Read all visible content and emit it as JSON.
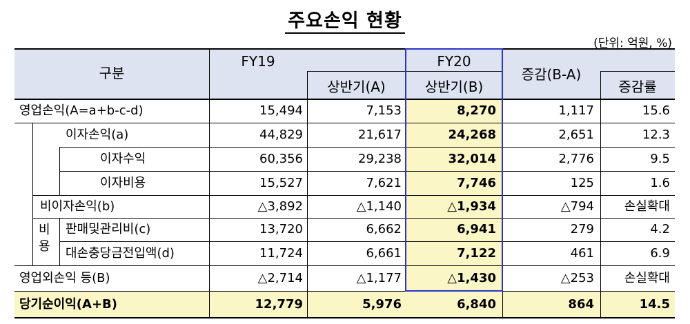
{
  "title": "주요손익 현황",
  "unit": "(단위: 억원, %)",
  "header": {
    "category": "구분",
    "fy19": "FY19",
    "fy19_h1": "상반기(A)",
    "fy20": "FY20",
    "fy20_h1": "상반기(B)",
    "change": "증감(B-A)",
    "rate": "증감률"
  },
  "side_label": "비\n용",
  "rows": [
    {
      "label": "영업손익(A=a+b-c-d)",
      "fy19": "15,494",
      "h1a": "7,153",
      "h1b": "8,270",
      "change": "1,117",
      "rate": "15.6"
    },
    {
      "label": "이자손익(a)",
      "fy19": "44,829",
      "h1a": "21,617",
      "h1b": "24,268",
      "change": "2,651",
      "rate": "12.3"
    },
    {
      "label": "이자수익",
      "fy19": "60,356",
      "h1a": "29,238",
      "h1b": "32,014",
      "change": "2,776",
      "rate": "9.5"
    },
    {
      "label": "이자비용",
      "fy19": "15,527",
      "h1a": "7,621",
      "h1b": "7,746",
      "change": "125",
      "rate": "1.6"
    },
    {
      "label": "비이자손익(b)",
      "fy19": "△3,892",
      "h1a": "△1,140",
      "h1b": "△1,934",
      "change": "△794",
      "rate": "손실확대"
    },
    {
      "label": "판매및관리비(c)",
      "fy19": "13,720",
      "h1a": "6,662",
      "h1b": "6,941",
      "change": "279",
      "rate": "4.2"
    },
    {
      "label": "대손충당금전입액(d)",
      "fy19": "11,724",
      "h1a": "6,661",
      "h1b": "7,122",
      "change": "461",
      "rate": "6.9"
    },
    {
      "label": "영업외손익 등(B)",
      "fy19": "△2,714",
      "h1a": "△1,177",
      "h1b": "△1,430",
      "change": "△253",
      "rate": "손실확대"
    },
    {
      "label": "당기순이익(A+B)",
      "fy19": "12,779",
      "h1a": "5,976",
      "h1b": "6,840",
      "change": "864",
      "rate": "14.5"
    }
  ],
  "colors": {
    "header_bg": "#dde3f1",
    "highlight_bg": "#fbf6c6",
    "fy20_border": "#2a36c8"
  }
}
